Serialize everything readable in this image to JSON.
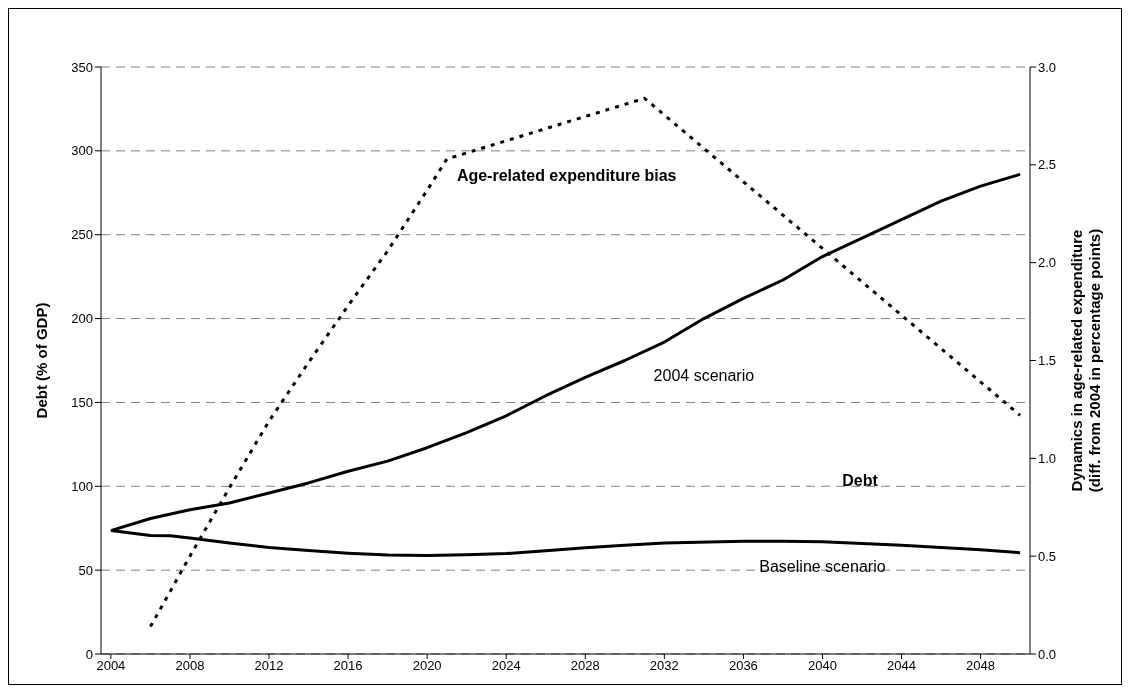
{
  "chart_data": {
    "type": "line",
    "ylabel": "Debt (% of GDP)",
    "y2label": "Dynamics in age-related  expenditure\n(diff. from 2004 in percentage points)",
    "xlim": [
      2003.5,
      2050.5
    ],
    "xticks": [
      2004,
      2008,
      2012,
      2016,
      2020,
      2024,
      2028,
      2032,
      2036,
      2040,
      2044,
      2048
    ],
    "ylim": [
      0,
      350
    ],
    "yticks": [
      0,
      50,
      100,
      150,
      200,
      250,
      300,
      350
    ],
    "y2lim": [
      0,
      3
    ],
    "y2ticks": [
      {
        "value": 0,
        "label": "0.0"
      },
      0.5,
      {
        "value": 1,
        "label": "1.0"
      },
      1.5,
      {
        "value": 2,
        "label": "2.0"
      },
      2.5,
      {
        "value": 3,
        "label": "3.0"
      }
    ],
    "grid": "y",
    "legend": false,
    "marker": "none",
    "annotations": [
      "Debt"
    ],
    "series": [
      {
        "name": "Age-related expenditure bias",
        "color": "#000000",
        "axis": "y2",
        "line_style": "dotted",
        "x": [
          2006,
          2008,
          2010,
          2012,
          2014,
          2016,
          2018,
          2020,
          2021,
          2031,
          2050
        ],
        "values": [
          0.14,
          0.5,
          0.85,
          1.19,
          1.49,
          1.78,
          2.06,
          2.37,
          2.53,
          2.84,
          1.22
        ]
      },
      {
        "name": "2004 scenario",
        "color": "#000000",
        "line_style": "solid",
        "x": [
          2004,
          2006,
          2008,
          2010,
          2012,
          2014,
          2016,
          2018,
          2020,
          2022,
          2024,
          2026,
          2028,
          2030,
          2032,
          2034,
          2036,
          2038,
          2040,
          2042,
          2044,
          2046,
          2048,
          2050
        ],
        "values": [
          73.6,
          80.8,
          86,
          90,
          96,
          102,
          109,
          115,
          123,
          132,
          142,
          154,
          165,
          175,
          186,
          200,
          212,
          223,
          237,
          248,
          259,
          270,
          279,
          286
        ]
      },
      {
        "name": "Baseline scenario",
        "color": "#000000",
        "line_style": "solid",
        "x": [
          2004,
          2006,
          2007,
          2008,
          2010,
          2012,
          2014,
          2016,
          2018,
          2020,
          2022,
          2024,
          2026,
          2028,
          2030,
          2032,
          2036,
          2038,
          2040,
          2044,
          2048,
          2050
        ],
        "values": [
          73.6,
          70.7,
          70.5,
          69.1,
          66.2,
          63.5,
          61.7,
          60.1,
          59,
          58.8,
          59.2,
          59.9,
          61.5,
          63.3,
          64.9,
          66.2,
          67.3,
          67.3,
          66.9,
          64.9,
          62.2,
          60.4
        ]
      }
    ]
  }
}
